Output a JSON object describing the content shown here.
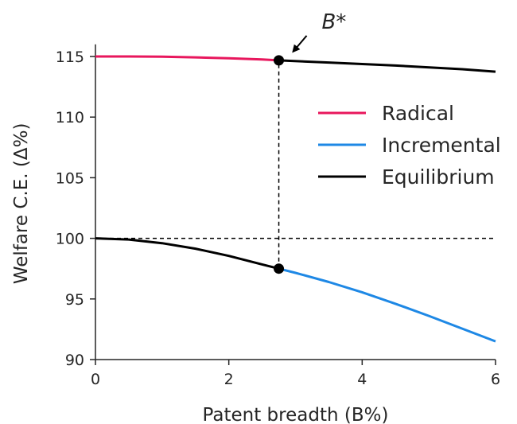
{
  "chart_data": {
    "type": "line",
    "title": "",
    "xlabel": "Patent breadth (B%)",
    "ylabel": "Welfare C.E. (Δ%)",
    "xlim": [
      0,
      6
    ],
    "ylim": [
      90,
      116
    ],
    "xticks": [
      0,
      2,
      4,
      6
    ],
    "yticks": [
      90,
      95,
      100,
      105,
      110,
      115
    ],
    "grid": false,
    "legend_position": "right",
    "series": [
      {
        "name": "Radical",
        "color": "#e8175d",
        "x": [
          0,
          0.5,
          1,
          1.5,
          2,
          2.5,
          2.75
        ],
        "y": [
          115.0,
          115.0,
          114.98,
          114.93,
          114.85,
          114.75,
          114.68
        ]
      },
      {
        "name": "Incremental",
        "color": "#1e88e5",
        "x": [
          2.75,
          3.0,
          3.5,
          4.0,
          4.5,
          5.0,
          5.5,
          6.0
        ],
        "y": [
          97.5,
          97.15,
          96.4,
          95.55,
          94.6,
          93.6,
          92.55,
          91.5
        ]
      },
      {
        "name": "Equilibrium",
        "color": "#000000",
        "segments": [
          {
            "x": [
              0,
              0.5,
              1,
              1.5,
              2,
              2.5,
              2.75
            ],
            "y": [
              100.0,
              99.9,
              99.6,
              99.15,
              98.55,
              97.85,
              97.5
            ]
          },
          {
            "x": [
              2.75,
              3.5,
              4.5,
              5.5,
              6.0
            ],
            "y": [
              114.68,
              114.5,
              114.25,
              113.95,
              113.75
            ]
          }
        ]
      }
    ],
    "reference_lines": [
      {
        "orientation": "horizontal",
        "y": 100,
        "x_from": 0,
        "x_to": 6,
        "style": "dashed"
      },
      {
        "orientation": "vertical",
        "x": 2.75,
        "y_from": 97.5,
        "y_to": 114.68,
        "style": "dashed"
      }
    ],
    "markers": [
      {
        "x": 2.75,
        "y": 114.68
      },
      {
        "x": 2.75,
        "y": 97.5
      }
    ],
    "annotations": [
      {
        "text": "B*",
        "target_x": 2.75,
        "target_y": 114.68,
        "arrow": true
      }
    ]
  }
}
